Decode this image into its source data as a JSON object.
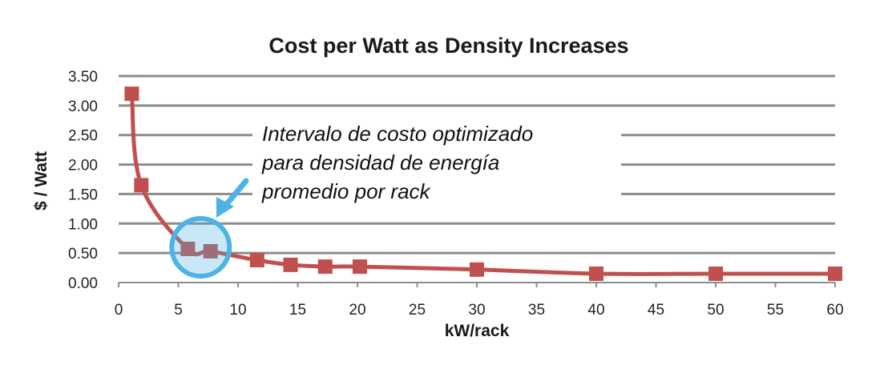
{
  "chart_data": {
    "type": "line",
    "title": "Cost per Watt as Density Increases",
    "xlabel": "kW/rack",
    "ylabel": "$ / Watt",
    "xlim": [
      0,
      60
    ],
    "ylim": [
      0,
      3.5
    ],
    "xticks": [
      "0",
      "5",
      "10",
      "15",
      "20",
      "25",
      "30",
      "35",
      "40",
      "45",
      "50",
      "55",
      "60"
    ],
    "yticks": [
      "0.00",
      "0.50",
      "1.00",
      "1.50",
      "2.00",
      "2.50",
      "3.00",
      "3.50"
    ],
    "grid": "horizontal",
    "series": [
      {
        "color": "#c0504d",
        "marker": "square",
        "points": [
          {
            "x": 1.1,
            "y": 3.2
          },
          {
            "x": 1.9,
            "y": 1.65
          },
          {
            "x": 5.8,
            "y": 0.57
          },
          {
            "x": 7.7,
            "y": 0.53
          },
          {
            "x": 11.6,
            "y": 0.38
          },
          {
            "x": 14.4,
            "y": 0.3
          },
          {
            "x": 17.3,
            "y": 0.27
          },
          {
            "x": 20.2,
            "y": 0.27
          },
          {
            "x": 30.0,
            "y": 0.22
          },
          {
            "x": 40.0,
            "y": 0.15
          },
          {
            "x": 50.0,
            "y": 0.15
          },
          {
            "x": 60.0,
            "y": 0.15
          }
        ]
      }
    ],
    "annotation": {
      "lines": [
        "Intervalo de costo optimizado",
        "para densidad de energía",
        "promedio por rack"
      ],
      "highlight_x_range": [
        5,
        9
      ],
      "highlight_color": "#4db3e6"
    }
  }
}
